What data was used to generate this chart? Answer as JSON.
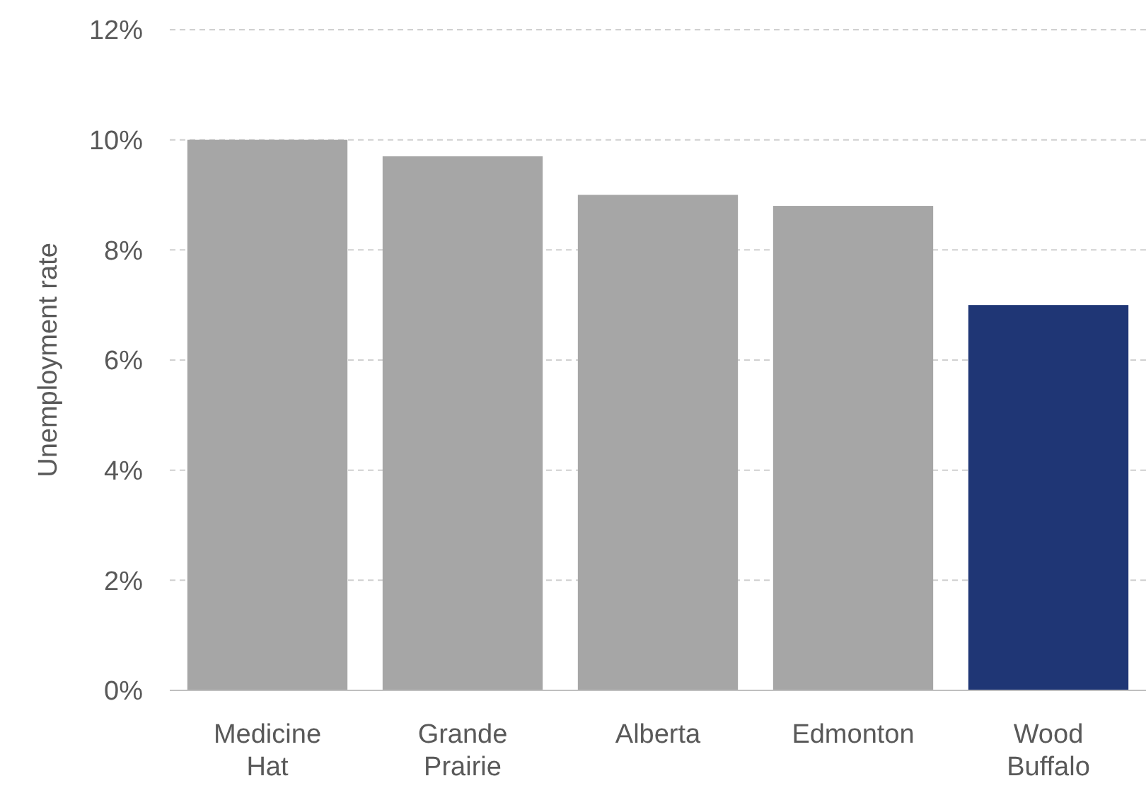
{
  "chart_data": {
    "type": "bar",
    "ylabel": "Unemployment  rate",
    "categories": [
      "Medicine Hat",
      "Grande Prairie",
      "Alberta",
      "Edmonton",
      "Wood Buffalo"
    ],
    "values": [
      10.0,
      9.7,
      9.0,
      8.8,
      7.0
    ],
    "colors": [
      "#a6a6a6",
      "#a6a6a6",
      "#a6a6a6",
      "#a6a6a6",
      "#1f3675"
    ],
    "ylim": [
      0,
      12
    ],
    "yticks": [
      {
        "value": 0,
        "label": "0%"
      },
      {
        "value": 2,
        "label": "2%"
      },
      {
        "value": 4,
        "label": "4%"
      },
      {
        "value": 6,
        "label": "6%"
      },
      {
        "value": 8,
        "label": "8%"
      },
      {
        "value": 10,
        "label": "10%"
      },
      {
        "value": 12,
        "label": "12%"
      }
    ],
    "grid": "y"
  }
}
